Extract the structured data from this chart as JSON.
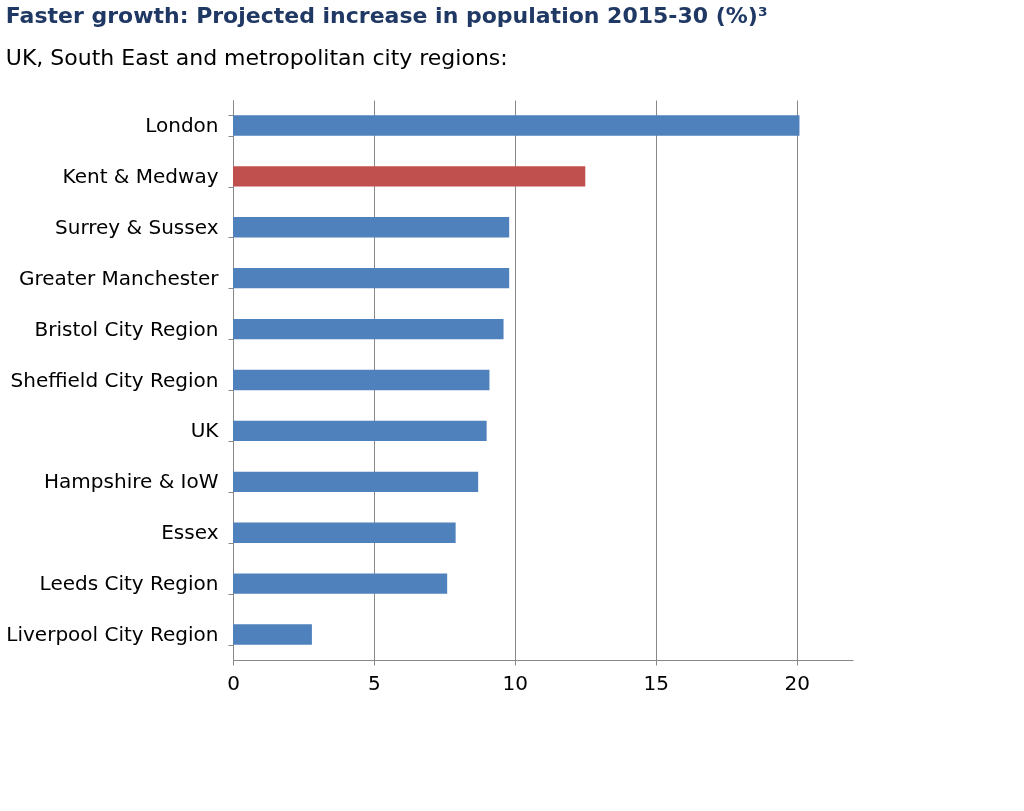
{
  "chart_data": {
    "type": "bar",
    "orientation": "horizontal",
    "title": "Faster growth: Projected increase in population 2015-30 (%)³",
    "subtitle": "UK, South East and metropolitan city regions:",
    "categories": [
      "London",
      "Kent & Medway",
      "Surrey & Sussex",
      "Greater Manchester",
      "Bristol City Region",
      "Sheffield City Region",
      "UK",
      "Hampshire & IoW",
      "Essex",
      "Leeds City Region",
      "Liverpool City Region"
    ],
    "values": [
      20.1,
      12.5,
      9.8,
      9.8,
      9.6,
      9.1,
      9.0,
      8.7,
      7.9,
      7.6,
      2.8
    ],
    "colors": [
      "#4f81bd",
      "#c0504d",
      "#4f81bd",
      "#4f81bd",
      "#4f81bd",
      "#4f81bd",
      "#4f81bd",
      "#4f81bd",
      "#4f81bd",
      "#4f81bd",
      "#4f81bd"
    ],
    "xlim": [
      0,
      22
    ],
    "xticks": [
      0,
      5,
      10,
      15,
      20
    ],
    "grid": "x"
  }
}
